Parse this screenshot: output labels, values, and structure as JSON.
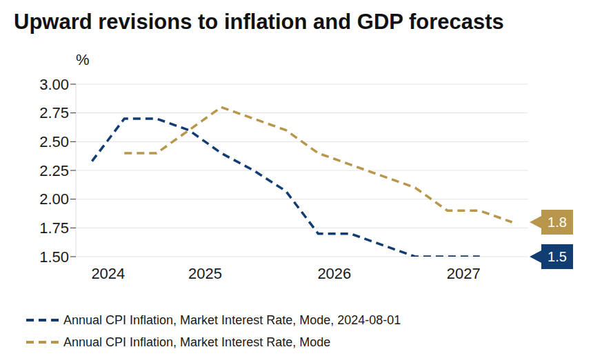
{
  "chart_data": {
    "type": "line",
    "title": "Upward revisions to inflation and GDP forecasts",
    "y_label": "%",
    "categories": [
      null,
      "2024",
      null,
      null,
      "2025",
      null,
      null,
      null,
      "2026",
      null,
      null,
      null,
      "2027",
      null
    ],
    "series": [
      {
        "name": "Annual CPI Inflation, Market Interest Rate, Mode, 2024-08-01",
        "color": "#123d73",
        "line_style": "dashed",
        "values": [
          2.33,
          2.7,
          2.7,
          2.6,
          2.4,
          2.25,
          2.07,
          1.7,
          1.7,
          1.6,
          1.5,
          1.5,
          1.5,
          null
        ],
        "value_labels": [
          null,
          null,
          null,
          null,
          null,
          null,
          null,
          null,
          null,
          null,
          null,
          null,
          "1.5",
          null
        ]
      },
      {
        "name": "Annual CPI Inflation, Market Interest Rate, Mode",
        "color": "#b8964c",
        "line_style": "dashed",
        "values": [
          null,
          2.4,
          2.4,
          2.6,
          2.8,
          2.7,
          2.6,
          2.4,
          2.3,
          2.2,
          2.1,
          1.9,
          1.9,
          1.8
        ],
        "value_labels": [
          null,
          null,
          null,
          null,
          null,
          null,
          null,
          null,
          null,
          null,
          null,
          null,
          null,
          "1.8"
        ]
      }
    ],
    "ylim": [
      1.5,
      3
    ],
    "yticks": [
      {
        "value": 1.5,
        "label": "1.50"
      },
      1.75,
      {
        "value": 2,
        "label": "2.00"
      },
      2.25,
      {
        "value": 2.5,
        "label": "2.50"
      },
      2.75,
      {
        "value": 3,
        "label": "3.00"
      }
    ],
    "grid": true,
    "legend": "bottom-left"
  }
}
